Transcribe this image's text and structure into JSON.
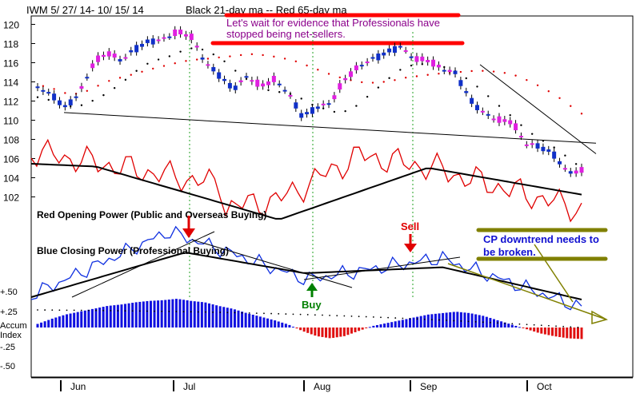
{
  "chart_data": [
    {
      "type": "candlestick",
      "title": "IWM 5/ 27/ 14- 10/ 15/ 14",
      "subtitle": "Black 21-day ma --  Red 65-day ma",
      "annotation": "Let's wait for evidence that Professionals have stopped being net-sellers.",
      "ylim": [
        100,
        121
      ],
      "yticks": [
        120,
        118,
        116,
        114,
        112,
        110,
        108,
        106,
        104,
        102
      ],
      "xticks": [
        "Jun",
        "Jul",
        "Aug",
        "Sep",
        "Oct"
      ],
      "series": [
        {
          "name": "IWM daily bars",
          "color": "#1030c8",
          "down_color": "#e020e0"
        },
        {
          "name": "21-day ma",
          "color": "#000000",
          "style": "dotted"
        },
        {
          "name": "65-day ma",
          "color": "#e00000",
          "style": "dotted"
        }
      ],
      "close_sample": [
        113.4,
        112.7,
        111.4,
        112.9,
        115.9,
        117.0,
        116.2,
        117.5,
        118.3,
        118.5,
        119.2,
        118.7,
        116.0,
        114.8,
        113.3,
        114.6,
        113.5,
        114.2,
        112.8,
        110.4,
        111.4,
        111.8,
        114.2,
        115.5,
        116.4,
        117.1,
        117.8,
        116.4,
        116.2,
        115.3,
        114.9,
        112.2,
        110.8,
        110.0,
        109.8,
        107.5,
        107.3,
        106.5,
        104.6,
        104.7
      ],
      "vertical_markers": [
        "Jul",
        "Aug",
        "Sep"
      ],
      "buy_label": "Buy",
      "sell_label": "Sell"
    },
    {
      "type": "line",
      "label": "Red Opening Power (Public and Overseas Buying)",
      "series": [
        {
          "name": "Opening Power",
          "color": "#e00000"
        },
        {
          "name": "Opening Power ma",
          "color": "#000000"
        }
      ],
      "trend_note": "falls from Jun high into Aug low, rallies to early Sep peak, falls into Oct"
    },
    {
      "type": "line",
      "label": "Blue Closing Power (Professional Buying)",
      "series": [
        {
          "name": "Closing Power",
          "color": "#1030e0"
        },
        {
          "name": "Closing Power ma",
          "color": "#000000"
        }
      ],
      "annotation": "CP downtrend needs to be broken.",
      "trend_note": "peaks in July, bottoms early Aug, flat Sep, declines into Oct"
    },
    {
      "type": "bar",
      "label": "Accum Index",
      "yticks": [
        "+.50",
        "+.25",
        "Accum",
        "Index",
        "-.25",
        "-.50"
      ],
      "ylim": [
        -0.5,
        0.5
      ],
      "values": [
        0.05,
        0.12,
        0.18,
        0.22,
        0.26,
        0.3,
        0.32,
        0.35,
        0.37,
        0.38,
        0.4,
        0.37,
        0.35,
        0.3,
        0.26,
        0.2,
        0.15,
        0.1,
        0.04,
        -0.05,
        -0.12,
        -0.15,
        -0.12,
        -0.05,
        0.02,
        0.06,
        0.1,
        0.14,
        0.18,
        0.2,
        0.22,
        0.2,
        0.16,
        0.1,
        0.04,
        -0.02,
        -0.08,
        -0.12,
        -0.15,
        -0.16
      ],
      "colors": {
        "positive": "#1010e0",
        "negative": "#e01010"
      }
    }
  ]
}
